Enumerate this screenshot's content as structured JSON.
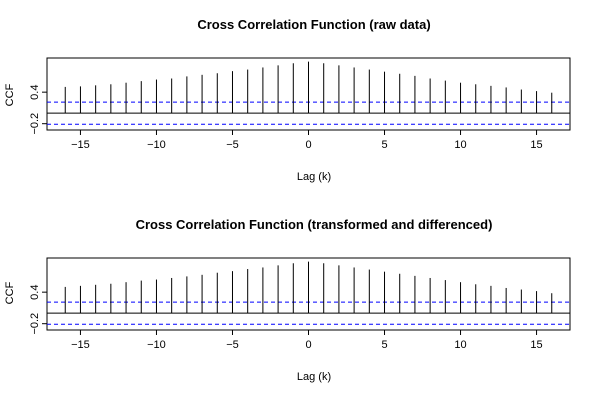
{
  "chart_data": [
    {
      "type": "bar",
      "title": "Cross Correlation Function (raw data)",
      "xlabel": "Lag (k)",
      "ylabel": "CCF",
      "xlim": [
        -17.2,
        17.2
      ],
      "ylim": [
        -0.32,
        1.05
      ],
      "x_ticks": [
        -15,
        -10,
        -5,
        0,
        5,
        10,
        15
      ],
      "x_tick_labels": [
        "−15",
        "−10",
        "−5",
        "0",
        "5",
        "10",
        "15"
      ],
      "y_ticks": [
        -0.2,
        0.4
      ],
      "y_tick_labels": [
        "−0.2",
        "0.4"
      ],
      "confidence_bounds": [
        0.21,
        -0.21
      ],
      "lags": [
        -16,
        -15,
        -14,
        -13,
        -12,
        -11,
        -10,
        -9,
        -8,
        -7,
        -6,
        -5,
        -4,
        -3,
        -2,
        -1,
        0,
        1,
        2,
        3,
        4,
        5,
        6,
        7,
        8,
        9,
        10,
        11,
        12,
        13,
        14,
        15,
        16
      ],
      "values": [
        0.5,
        0.51,
        0.53,
        0.55,
        0.58,
        0.61,
        0.64,
        0.66,
        0.7,
        0.73,
        0.76,
        0.8,
        0.83,
        0.87,
        0.91,
        0.95,
        0.98,
        0.95,
        0.91,
        0.87,
        0.83,
        0.79,
        0.75,
        0.71,
        0.66,
        0.62,
        0.58,
        0.55,
        0.52,
        0.49,
        0.45,
        0.42,
        0.39
      ],
      "grid": false,
      "colors": {
        "bars": "#000000",
        "confidence": "#0000ff",
        "frame": "#000000"
      }
    },
    {
      "type": "bar",
      "title": "Cross Correlation Function (transformed and differenced)",
      "xlabel": "Lag (k)",
      "ylabel": "CCF",
      "xlim": [
        -17.2,
        17.2
      ],
      "ylim": [
        -0.32,
        1.05
      ],
      "x_ticks": [
        -15,
        -10,
        -5,
        0,
        5,
        10,
        15
      ],
      "x_tick_labels": [
        "−15",
        "−10",
        "−5",
        "0",
        "5",
        "10",
        "15"
      ],
      "y_ticks": [
        -0.2,
        0.4
      ],
      "y_tick_labels": [
        "−0.2",
        "0.4"
      ],
      "confidence_bounds": [
        0.21,
        -0.21
      ],
      "lags": [
        -16,
        -15,
        -14,
        -13,
        -12,
        -11,
        -10,
        -9,
        -8,
        -7,
        -6,
        -5,
        -4,
        -3,
        -2,
        -1,
        0,
        1,
        2,
        3,
        4,
        5,
        6,
        7,
        8,
        9,
        10,
        11,
        12,
        13,
        14,
        15,
        16
      ],
      "values": [
        0.5,
        0.52,
        0.54,
        0.56,
        0.59,
        0.62,
        0.64,
        0.67,
        0.7,
        0.73,
        0.77,
        0.8,
        0.84,
        0.87,
        0.91,
        0.95,
        0.98,
        0.95,
        0.91,
        0.87,
        0.83,
        0.79,
        0.75,
        0.71,
        0.67,
        0.63,
        0.59,
        0.55,
        0.52,
        0.48,
        0.45,
        0.42,
        0.38
      ],
      "grid": false,
      "colors": {
        "bars": "#000000",
        "confidence": "#0000ff",
        "frame": "#000000"
      }
    }
  ]
}
